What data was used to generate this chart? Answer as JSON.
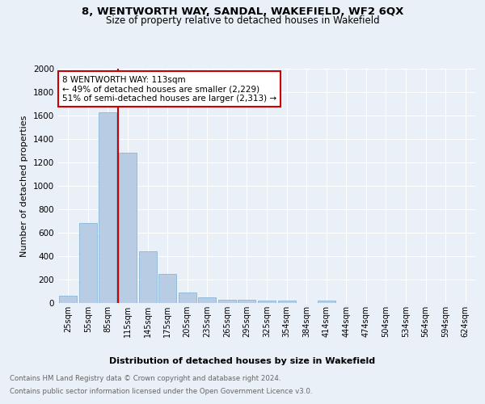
{
  "title": "8, WENTWORTH WAY, SANDAL, WAKEFIELD, WF2 6QX",
  "subtitle": "Size of property relative to detached houses in Wakefield",
  "xlabel": "Distribution of detached houses by size in Wakefield",
  "ylabel": "Number of detached properties",
  "categories": [
    "25sqm",
    "55sqm",
    "85sqm",
    "115sqm",
    "145sqm",
    "175sqm",
    "205sqm",
    "235sqm",
    "265sqm",
    "295sqm",
    "325sqm",
    "354sqm",
    "384sqm",
    "414sqm",
    "444sqm",
    "474sqm",
    "504sqm",
    "534sqm",
    "564sqm",
    "594sqm",
    "624sqm"
  ],
  "values": [
    65,
    680,
    1630,
    1280,
    440,
    250,
    90,
    45,
    30,
    25,
    20,
    20,
    0,
    20,
    0,
    0,
    0,
    0,
    0,
    0,
    0
  ],
  "bar_color": "#b8cce4",
  "bar_edge_color": "#7bafd4",
  "vline_color": "#cc0000",
  "annotation_text": "8 WENTWORTH WAY: 113sqm\n← 49% of detached houses are smaller (2,229)\n51% of semi-detached houses are larger (2,313) →",
  "annotation_box_color": "#ffffff",
  "annotation_box_edge": "#cc0000",
  "ylim": [
    0,
    2000
  ],
  "yticks": [
    0,
    200,
    400,
    600,
    800,
    1000,
    1200,
    1400,
    1600,
    1800,
    2000
  ],
  "footer_line1": "Contains HM Land Registry data © Crown copyright and database right 2024.",
  "footer_line2": "Contains public sector information licensed under the Open Government Licence v3.0.",
  "background_color": "#eaf0f8",
  "plot_bg_color": "#eaf0f8"
}
